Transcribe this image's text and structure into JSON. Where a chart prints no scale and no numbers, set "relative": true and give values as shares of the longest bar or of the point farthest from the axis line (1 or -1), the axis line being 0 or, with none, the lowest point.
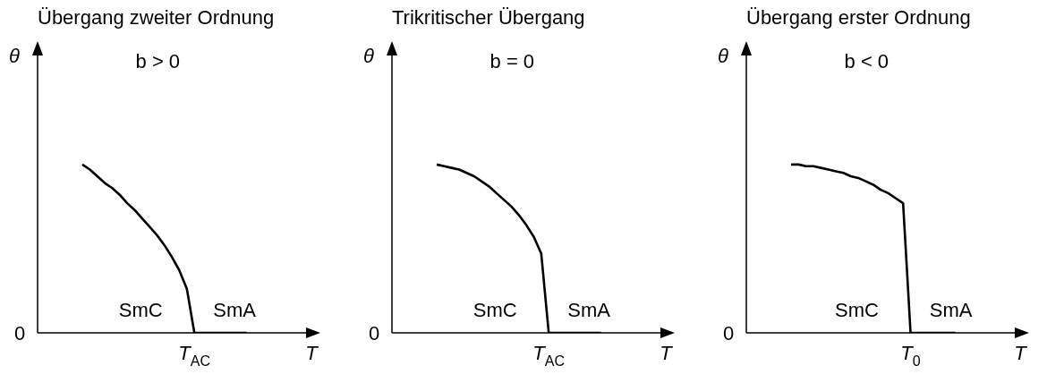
{
  "chart_data": [
    {
      "type": "line",
      "title": "Übergang zweiter Ordnung",
      "xlabel": "T",
      "ylabel": "θ",
      "relative": true,
      "color": "#000000",
      "categories": [
        null,
        null,
        null,
        null,
        null,
        null,
        null,
        null,
        null,
        null,
        null,
        null,
        null,
        null,
        null,
        null,
        null,
        null,
        null,
        null,
        null,
        null,
        null,
        null,
        null,
        null,
        null,
        null,
        null,
        null,
        null,
        null,
        null,
        null,
        null,
        null
      ],
      "values": [
        null,
        null,
        null,
        null,
        null,
        null,
        1,
        0.97,
        0.93,
        0.89,
        0.86,
        0.82,
        0.77,
        0.73,
        0.68,
        0.63,
        0.58,
        0.52,
        0.45,
        0.37,
        0.26,
        0,
        0,
        0,
        0,
        0,
        0,
        0,
        0,
        null,
        null,
        null,
        null,
        null,
        null,
        null
      ],
      "annotations": [
        "b > 0",
        "SmC",
        "SmA",
        "0",
        "T$_{AC}$"
      ]
    },
    {
      "type": "line",
      "title": "Trikritischer Übergang",
      "xlabel": "T",
      "ylabel": "θ",
      "relative": true,
      "color": "#000000",
      "categories": [
        null,
        null,
        null,
        null,
        null,
        null,
        null,
        null,
        null,
        null,
        null,
        null,
        null,
        null,
        null,
        null,
        null,
        null,
        null,
        null,
        null,
        null,
        null,
        null,
        null,
        null,
        null,
        null,
        null,
        null,
        null,
        null,
        null,
        null,
        null,
        null
      ],
      "values": [
        null,
        null,
        null,
        null,
        null,
        null,
        1,
        0.99,
        0.98,
        0.97,
        0.95,
        0.93,
        0.9,
        0.87,
        0.83,
        0.79,
        0.75,
        0.7,
        0.64,
        0.57,
        0.47,
        0,
        0,
        0,
        0,
        0,
        0,
        0,
        0,
        null,
        null,
        null,
        null,
        null,
        null,
        null
      ],
      "annotations": [
        "b = 0",
        "SmC",
        "SmA",
        "0",
        "T$_{AC}$"
      ]
    },
    {
      "type": "line",
      "title": "Übergang erster Ordnung",
      "xlabel": "T",
      "ylabel": "θ",
      "relative": true,
      "color": "#000000",
      "categories": [
        null,
        null,
        null,
        null,
        null,
        null,
        null,
        null,
        null,
        null,
        null,
        null,
        null,
        null,
        null,
        null,
        null,
        null,
        null,
        null,
        null,
        null,
        null,
        null,
        null,
        null,
        null,
        null,
        null,
        null,
        null,
        null,
        null,
        null,
        null,
        null
      ],
      "values": [
        null,
        null,
        null,
        null,
        null,
        null,
        1,
        1,
        0.99,
        0.99,
        0.98,
        0.97,
        0.96,
        0.95,
        0.93,
        0.92,
        0.9,
        0.88,
        0.85,
        0.83,
        0.8,
        0.77,
        0,
        0,
        0,
        0,
        0,
        0,
        0,
        null,
        null,
        null,
        null,
        null,
        null,
        null
      ],
      "annotations": [
        "b < 0",
        "SmC",
        "SmA",
        "0",
        "T$_{0}$"
      ]
    }
  ]
}
